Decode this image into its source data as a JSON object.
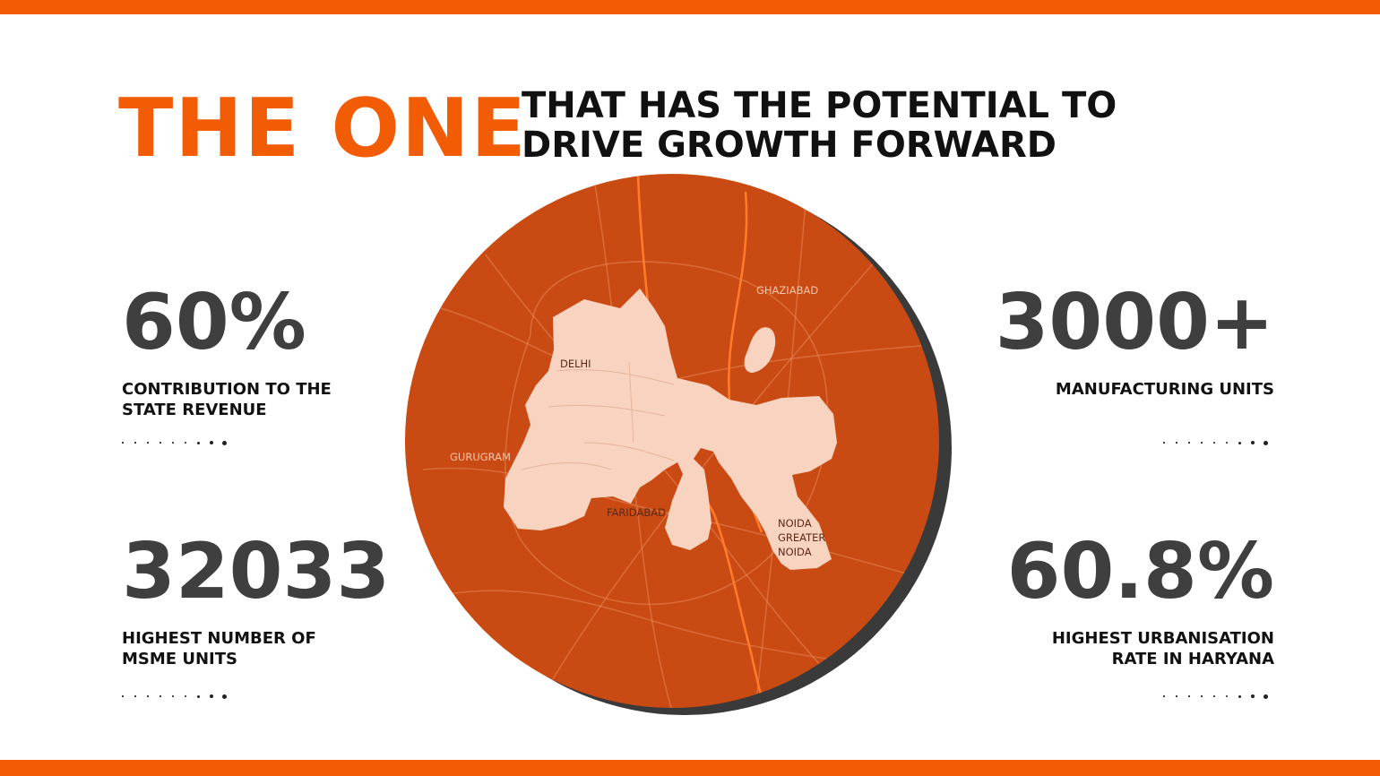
{
  "headline": {
    "highlight": "THE ONE",
    "line1": "THAT HAS THE POTENTIAL TO",
    "line2": "DRIVE GROWTH FORWARD"
  },
  "stats": {
    "revenue": {
      "value": "60%",
      "label": "CONTRIBUTION TO THE\nSTATE REVENUE"
    },
    "msme": {
      "value": "32033",
      "label": "HIGHEST NUMBER OF\nMSME UNITS"
    },
    "manufacturing": {
      "value": "3000+",
      "label": "MANUFACTURING UNITS"
    },
    "urbanisation": {
      "value": "60.8%",
      "label": "HIGHEST URBANISATION\nRATE IN HARYANA"
    }
  },
  "map": {
    "labels": {
      "delhi": "DELHI",
      "ghaziabad": "GHAZIABAD",
      "gurugram": "GURUGRAM",
      "faridabad": "FARIDABAD",
      "noida": "NOIDA",
      "greater": "GREATER",
      "noida2": "NOIDA"
    }
  },
  "colors": {
    "accent": "#f25c05",
    "circle": "#c94a12",
    "region": "#f8d4c0",
    "stat_text": "#3f3f3f"
  }
}
